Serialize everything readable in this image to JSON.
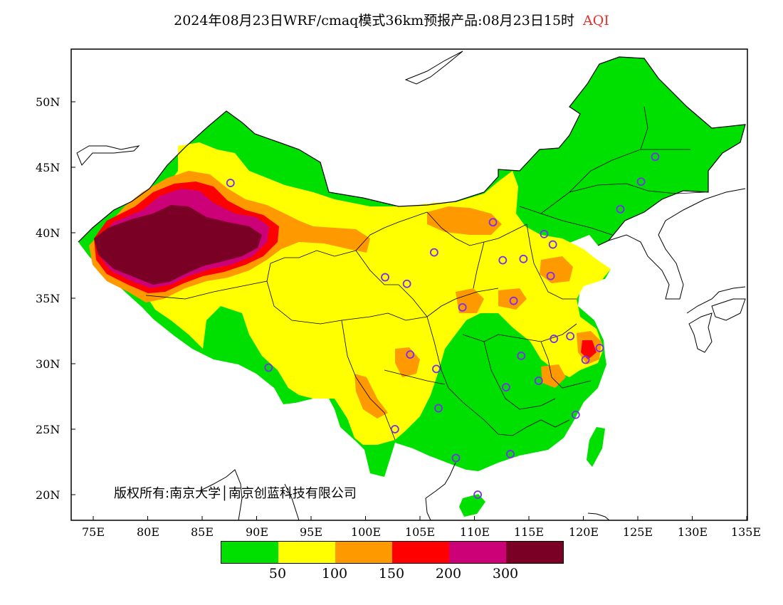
{
  "title": {
    "main": "2024年08月23日WRF/cmaq模式36km预报产品:08月23日15时",
    "variable": "AQI"
  },
  "axes": {
    "lat_labels": [
      "50N",
      "45N",
      "40N",
      "35N",
      "30N",
      "25N",
      "20N"
    ],
    "lon_labels": [
      "75E",
      "80E",
      "85E",
      "90E",
      "95E",
      "100E",
      "105E",
      "110E",
      "115E",
      "120E",
      "125E",
      "130E",
      "135E"
    ]
  },
  "copyright": "版权所有:南京大学│南京创蓝科技有限公司",
  "legend": {
    "colors": [
      "#00e000",
      "#ffff00",
      "#ff9900",
      "#ff0000",
      "#cc0077",
      "#7a0026"
    ],
    "labels": [
      "50",
      "100",
      "150",
      "200",
      "300"
    ]
  },
  "stations": [
    {
      "lon": 87.6,
      "lat": 43.8
    },
    {
      "lon": 91.1,
      "lat": 29.7
    },
    {
      "lon": 101.8,
      "lat": 36.6
    },
    {
      "lon": 103.8,
      "lat": 36.1
    },
    {
      "lon": 106.3,
      "lat": 38.5
    },
    {
      "lon": 111.7,
      "lat": 40.8
    },
    {
      "lon": 112.6,
      "lat": 37.9
    },
    {
      "lon": 114.5,
      "lat": 38.0
    },
    {
      "lon": 116.4,
      "lat": 39.9
    },
    {
      "lon": 117.2,
      "lat": 39.1
    },
    {
      "lon": 117.0,
      "lat": 36.7
    },
    {
      "lon": 113.6,
      "lat": 34.8
    },
    {
      "lon": 108.9,
      "lat": 34.3
    },
    {
      "lon": 104.1,
      "lat": 30.7
    },
    {
      "lon": 106.5,
      "lat": 29.6
    },
    {
      "lon": 102.7,
      "lat": 25.0
    },
    {
      "lon": 106.7,
      "lat": 26.6
    },
    {
      "lon": 108.3,
      "lat": 22.8
    },
    {
      "lon": 113.3,
      "lat": 23.1
    },
    {
      "lon": 110.3,
      "lat": 20.0
    },
    {
      "lon": 114.3,
      "lat": 30.6
    },
    {
      "lon": 112.9,
      "lat": 28.2
    },
    {
      "lon": 115.9,
      "lat": 28.7
    },
    {
      "lon": 117.3,
      "lat": 31.9
    },
    {
      "lon": 118.8,
      "lat": 32.1
    },
    {
      "lon": 120.2,
      "lat": 30.3
    },
    {
      "lon": 121.5,
      "lat": 31.2
    },
    {
      "lon": 119.3,
      "lat": 26.1
    },
    {
      "lon": 123.4,
      "lat": 41.8
    },
    {
      "lon": 125.3,
      "lat": 43.9
    },
    {
      "lon": 126.6,
      "lat": 45.8
    }
  ]
}
